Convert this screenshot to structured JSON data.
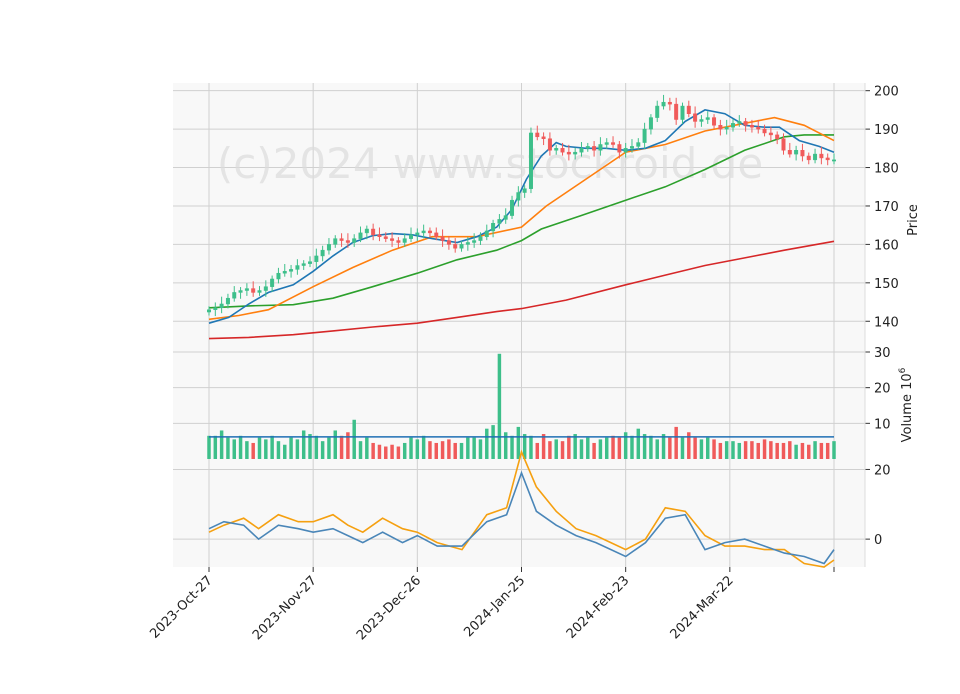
{
  "watermark": "(c)2024 www.stockroid.de",
  "colors": {
    "up": "#3dbf8a",
    "down": "#f05a5a",
    "ma_fast": "#1f77b4",
    "ma_mid": "#ff7f0e",
    "ma_slow": "#2ca02c",
    "ma_long": "#d62728",
    "vol_ma": "#1f6fb4",
    "osc_a": "#4a86b8",
    "osc_b": "#f5a010",
    "panel_bg": "#f8f8f8",
    "grid": "#d0d0d0"
  },
  "chart_data": [
    {
      "type": "candlestick",
      "ylabel": "Price",
      "ylim": [
        132,
        202
      ],
      "yticks": [
        140,
        150,
        160,
        170,
        180,
        190,
        200
      ],
      "x_tick_labels": [
        "2023-Oct-27",
        "2023-Nov-27",
        "2023-Dec-26",
        "2024-Jan-25",
        "2024-Feb-23",
        "2024-Mar-22",
        ""
      ],
      "x_tick_index": [
        0,
        21,
        42,
        63,
        84,
        105,
        126
      ],
      "n_days": 126,
      "close": [
        143.0,
        143.5,
        144.5,
        146.0,
        147.5,
        148.0,
        148.5,
        147.5,
        148.0,
        149.0,
        151.0,
        152.5,
        153.0,
        153.5,
        154.5,
        155.0,
        155.5,
        157.0,
        158.5,
        160.0,
        161.5,
        161.0,
        160.5,
        161.5,
        163.0,
        164.0,
        162.5,
        162.0,
        161.5,
        161.0,
        160.5,
        161.5,
        162.5,
        163.0,
        163.5,
        163.0,
        162.0,
        161.0,
        160.0,
        159.0,
        160.0,
        160.5,
        161.0,
        162.0,
        163.5,
        165.5,
        166.5,
        167.5,
        171.5,
        173.5,
        174.5,
        189.0,
        188.0,
        187.5,
        184.5,
        185.0,
        184.0,
        183.5,
        184.0,
        185.0,
        185.5,
        184.5,
        186.0,
        186.5,
        186.0,
        184.0,
        185.0,
        185.5,
        186.5,
        190.0,
        193.0,
        196.0,
        197.0,
        196.5,
        192.5,
        196.0,
        194.0,
        192.0,
        192.5,
        193.0,
        191.0,
        190.0,
        190.5,
        191.5,
        192.0,
        191.0,
        190.5,
        190.0,
        189.0,
        188.5,
        187.5,
        184.5,
        183.5,
        184.5,
        183.0,
        182.0,
        183.5,
        182.5,
        182.0,
        182.0
      ],
      "volume": [
        6.5,
        6.5,
        8.0,
        6.0,
        5.5,
        6.5,
        5.0,
        4.5,
        6.0,
        5.5,
        6.5,
        5.0,
        4.0,
        6.0,
        5.5,
        8.0,
        7.0,
        6.5,
        5.0,
        6.0,
        8.0,
        6.5,
        7.5,
        11.0,
        5.0,
        6.0,
        4.5,
        4.0,
        3.5,
        4.0,
        3.5,
        4.5,
        6.0,
        5.5,
        6.5,
        5.0,
        4.5,
        5.0,
        5.5,
        4.5,
        4.5,
        6.0,
        6.0,
        5.5,
        8.5,
        9.5,
        29.5,
        7.5,
        6.5,
        9.0,
        7.0,
        6.5,
        4.5,
        7.0,
        5.0,
        5.5,
        5.0,
        6.5,
        7.0,
        5.5,
        6.0,
        4.5,
        5.5,
        6.0,
        6.5,
        6.0,
        7.5,
        6.5,
        8.5,
        7.0,
        6.5,
        5.5,
        7.0,
        6.0,
        9.0,
        6.0,
        7.5,
        6.0,
        5.5,
        6.0,
        5.5,
        4.5,
        5.0,
        5.0,
        4.5,
        5.0,
        5.0,
        4.5,
        5.5,
        5.0,
        4.5,
        4.5,
        5.0,
        4.0,
        4.5,
        4.0,
        5.0,
        4.5,
        4.5,
        5.0
      ],
      "ma_fast": [
        [
          0,
          139.5
        ],
        [
          4,
          141
        ],
        [
          8,
          144.5
        ],
        [
          12,
          147.5
        ],
        [
          17,
          149.5
        ],
        [
          21,
          153
        ],
        [
          25,
          157
        ],
        [
          29,
          160.5
        ],
        [
          33,
          162.3
        ],
        [
          37,
          162.8
        ],
        [
          41,
          162.5
        ],
        [
          45,
          161.5
        ],
        [
          50,
          160.5
        ],
        [
          54,
          162
        ],
        [
          58,
          164.5
        ],
        [
          61,
          169
        ],
        [
          64,
          177
        ],
        [
          67,
          183
        ],
        [
          70,
          186.5
        ],
        [
          72,
          185.5
        ],
        [
          76,
          185
        ],
        [
          80,
          185
        ],
        [
          84,
          184.5
        ],
        [
          88,
          185
        ],
        [
          92,
          187
        ],
        [
          96,
          192
        ],
        [
          100,
          195
        ],
        [
          104,
          194
        ],
        [
          108,
          191
        ],
        [
          112,
          190.5
        ],
        [
          115,
          190.5
        ],
        [
          119,
          187
        ],
        [
          123,
          185.5
        ],
        [
          126,
          184
        ]
      ],
      "ma_mid": [
        [
          0,
          140.5
        ],
        [
          6,
          141.5
        ],
        [
          12,
          143
        ],
        [
          21,
          149
        ],
        [
          29,
          154
        ],
        [
          37,
          158.5
        ],
        [
          45,
          162
        ],
        [
          54,
          162
        ],
        [
          63,
          164.5
        ],
        [
          68,
          170
        ],
        [
          76,
          177
        ],
        [
          84,
          184
        ],
        [
          92,
          186
        ],
        [
          100,
          189.5
        ],
        [
          108,
          191.5
        ],
        [
          114,
          193
        ],
        [
          120,
          191
        ],
        [
          126,
          187
        ]
      ],
      "ma_slow": [
        [
          0,
          143.5
        ],
        [
          8,
          144
        ],
        [
          17,
          144.3
        ],
        [
          25,
          146
        ],
        [
          33,
          149
        ],
        [
          42,
          152.5
        ],
        [
          50,
          156
        ],
        [
          58,
          158.5
        ],
        [
          63,
          161
        ],
        [
          67,
          164
        ],
        [
          75,
          167.5
        ],
        [
          84,
          171.5
        ],
        [
          92,
          175
        ],
        [
          100,
          179.5
        ],
        [
          108,
          184.5
        ],
        [
          116,
          188
        ],
        [
          120,
          188.5
        ],
        [
          126,
          188.5
        ]
      ],
      "ma_long": [
        [
          0,
          135.5
        ],
        [
          8,
          135.8
        ],
        [
          17,
          136.5
        ],
        [
          25,
          137.5
        ],
        [
          33,
          138.5
        ],
        [
          42,
          139.5
        ],
        [
          50,
          141
        ],
        [
          58,
          142.5
        ],
        [
          63,
          143.3
        ],
        [
          72,
          145.5
        ],
        [
          84,
          149.5
        ],
        [
          92,
          152
        ],
        [
          100,
          154.5
        ],
        [
          108,
          156.5
        ],
        [
          116,
          158.5
        ],
        [
          126,
          160.8
        ]
      ]
    },
    {
      "type": "bar",
      "ylabel": "Volume  10^6",
      "ylim": [
        0,
        30
      ],
      "yticks": [
        10,
        20,
        30
      ],
      "vol_ma_level": 6.2
    },
    {
      "type": "line",
      "ylim": [
        -8,
        23
      ],
      "yticks": [
        0,
        20
      ],
      "series": [
        {
          "values": [
            [
              0,
              3
            ],
            [
              3,
              5
            ],
            [
              7,
              4
            ],
            [
              10,
              0
            ],
            [
              14,
              4
            ],
            [
              18,
              3
            ],
            [
              21,
              2
            ],
            [
              25,
              3
            ],
            [
              28,
              1
            ],
            [
              31,
              -1
            ],
            [
              35,
              2
            ],
            [
              39,
              -1
            ],
            [
              42,
              1
            ],
            [
              46,
              -2
            ],
            [
              51,
              -2
            ],
            [
              56,
              5
            ],
            [
              60,
              7
            ],
            [
              63,
              19
            ],
            [
              66,
              8
            ],
            [
              70,
              4
            ],
            [
              74,
              1
            ],
            [
              78,
              -1
            ],
            [
              84,
              -5
            ],
            [
              88,
              -1
            ],
            [
              92,
              6
            ],
            [
              96,
              7
            ],
            [
              100,
              -3
            ],
            [
              104,
              -1
            ],
            [
              108,
              0
            ],
            [
              112,
              -2
            ],
            [
              116,
              -4
            ],
            [
              120,
              -5
            ],
            [
              124,
              -7
            ],
            [
              126,
              -3
            ]
          ]
        },
        {
          "values": [
            [
              0,
              2
            ],
            [
              3,
              4
            ],
            [
              7,
              6
            ],
            [
              10,
              3
            ],
            [
              14,
              7
            ],
            [
              18,
              5
            ],
            [
              21,
              5
            ],
            [
              25,
              7
            ],
            [
              28,
              4
            ],
            [
              31,
              2
            ],
            [
              35,
              6
            ],
            [
              39,
              3
            ],
            [
              42,
              2
            ],
            [
              46,
              -1
            ],
            [
              51,
              -3
            ],
            [
              56,
              7
            ],
            [
              60,
              9
            ],
            [
              63,
              25
            ],
            [
              66,
              15
            ],
            [
              70,
              8
            ],
            [
              74,
              3
            ],
            [
              78,
              1
            ],
            [
              84,
              -3
            ],
            [
              88,
              0
            ],
            [
              92,
              9
            ],
            [
              96,
              8
            ],
            [
              100,
              1
            ],
            [
              104,
              -2
            ],
            [
              108,
              -2
            ],
            [
              112,
              -3
            ],
            [
              116,
              -3
            ],
            [
              120,
              -7
            ],
            [
              124,
              -8
            ],
            [
              126,
              -6
            ]
          ]
        }
      ]
    }
  ]
}
